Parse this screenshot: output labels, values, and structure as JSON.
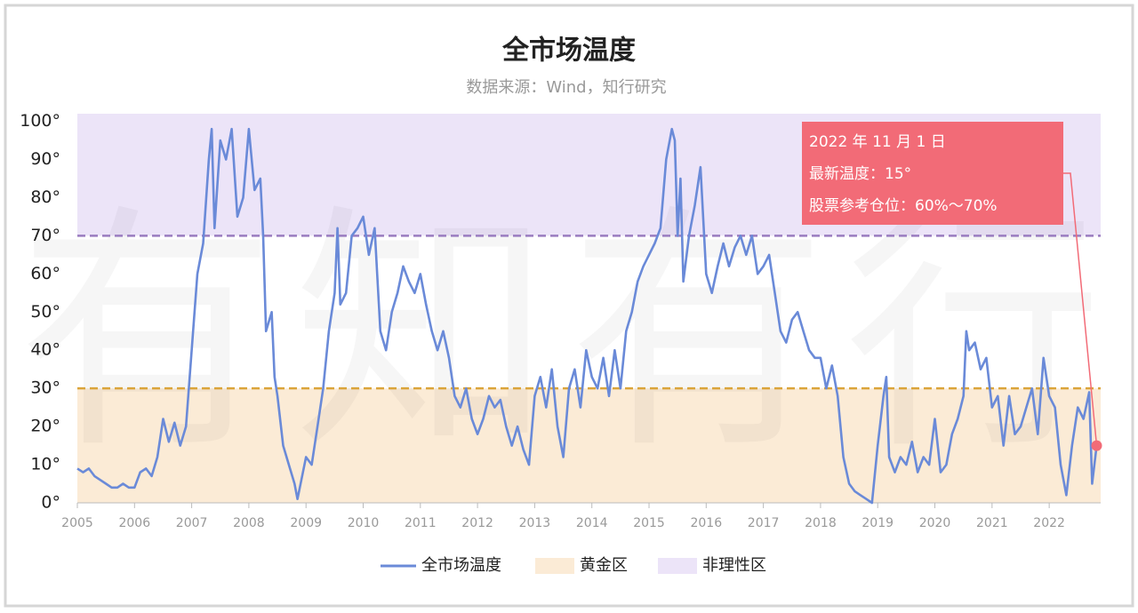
{
  "chart_data": {
    "type": "line",
    "title": "全市场温度",
    "subtitle": "数据来源：Wind，知行研究",
    "watermark": "有知有行",
    "x": [
      2005.0,
      2005.1,
      2005.2,
      2005.3,
      2005.4,
      2005.5,
      2005.6,
      2005.7,
      2005.8,
      2005.9,
      2006.0,
      2006.1,
      2006.2,
      2006.3,
      2006.4,
      2006.5,
      2006.6,
      2006.7,
      2006.8,
      2006.9,
      2007.0,
      2007.1,
      2007.2,
      2007.3,
      2007.35,
      2007.4,
      2007.5,
      2007.6,
      2007.7,
      2007.8,
      2007.9,
      2008.0,
      2008.1,
      2008.2,
      2008.25,
      2008.3,
      2008.4,
      2008.45,
      2008.5,
      2008.6,
      2008.7,
      2008.8,
      2008.85,
      2009.0,
      2009.1,
      2009.2,
      2009.3,
      2009.4,
      2009.5,
      2009.55,
      2009.6,
      2009.7,
      2009.8,
      2009.9,
      2010.0,
      2010.1,
      2010.2,
      2010.3,
      2010.4,
      2010.5,
      2010.6,
      2010.7,
      2010.8,
      2010.9,
      2011.0,
      2011.1,
      2011.2,
      2011.3,
      2011.4,
      2011.5,
      2011.6,
      2011.7,
      2011.8,
      2011.9,
      2012.0,
      2012.1,
      2012.2,
      2012.3,
      2012.4,
      2012.5,
      2012.6,
      2012.7,
      2012.8,
      2012.9,
      2013.0,
      2013.1,
      2013.2,
      2013.3,
      2013.4,
      2013.5,
      2013.6,
      2013.7,
      2013.8,
      2013.9,
      2014.0,
      2014.1,
      2014.2,
      2014.3,
      2014.4,
      2014.5,
      2014.6,
      2014.7,
      2014.8,
      2014.9,
      2015.0,
      2015.1,
      2015.2,
      2015.3,
      2015.4,
      2015.45,
      2015.5,
      2015.55,
      2015.6,
      2015.7,
      2015.8,
      2015.9,
      2016.0,
      2016.1,
      2016.2,
      2016.3,
      2016.4,
      2016.5,
      2016.6,
      2016.7,
      2016.8,
      2016.9,
      2017.0,
      2017.1,
      2017.2,
      2017.3,
      2017.4,
      2017.5,
      2017.6,
      2017.7,
      2017.8,
      2017.9,
      2018.0,
      2018.1,
      2018.2,
      2018.3,
      2018.4,
      2018.5,
      2018.6,
      2018.7,
      2018.8,
      2018.9,
      2019.0,
      2019.1,
      2019.15,
      2019.2,
      2019.3,
      2019.4,
      2019.5,
      2019.6,
      2019.7,
      2019.8,
      2019.9,
      2020.0,
      2020.1,
      2020.2,
      2020.3,
      2020.4,
      2020.5,
      2020.55,
      2020.6,
      2020.7,
      2020.8,
      2020.9,
      2021.0,
      2021.1,
      2021.2,
      2021.3,
      2021.4,
      2021.5,
      2021.6,
      2021.7,
      2021.8,
      2021.9,
      2022.0,
      2022.1,
      2022.2,
      2022.3,
      2022.4,
      2022.5,
      2022.6,
      2022.7,
      2022.75,
      2022.83
    ],
    "series": [
      {
        "name": "全市场温度",
        "color": "#6a8ad8",
        "values": [
          9,
          8,
          9,
          7,
          6,
          5,
          4,
          4,
          5,
          4,
          4,
          8,
          9,
          7,
          12,
          22,
          16,
          21,
          15,
          20,
          40,
          60,
          68,
          90,
          98,
          72,
          95,
          90,
          98,
          75,
          80,
          98,
          82,
          85,
          70,
          45,
          50,
          33,
          28,
          15,
          10,
          5,
          1,
          12,
          10,
          20,
          30,
          45,
          55,
          72,
          52,
          55,
          70,
          72,
          75,
          65,
          72,
          45,
          40,
          50,
          55,
          62,
          58,
          55,
          60,
          52,
          45,
          40,
          45,
          38,
          28,
          25,
          30,
          22,
          18,
          22,
          28,
          25,
          27,
          20,
          15,
          20,
          14,
          10,
          28,
          33,
          25,
          35,
          20,
          12,
          30,
          35,
          25,
          40,
          33,
          30,
          38,
          28,
          40,
          30,
          45,
          50,
          58,
          62,
          65,
          68,
          72,
          90,
          98,
          95,
          70,
          85,
          58,
          70,
          78,
          88,
          60,
          55,
          62,
          68,
          62,
          67,
          70,
          65,
          70,
          60,
          62,
          65,
          55,
          45,
          42,
          48,
          50,
          45,
          40,
          38,
          38,
          30,
          36,
          28,
          12,
          5,
          3,
          2,
          1,
          0,
          15,
          28,
          33,
          12,
          8,
          12,
          10,
          16,
          8,
          12,
          10,
          22,
          8,
          10,
          18,
          22,
          28,
          45,
          40,
          42,
          35,
          38,
          25,
          28,
          15,
          28,
          18,
          20,
          25,
          30,
          18,
          38,
          28,
          25,
          10,
          2,
          15,
          25,
          22,
          29,
          5,
          15
        ]
      }
    ],
    "bands": [
      {
        "name": "黄金区",
        "color": "#fbebd6",
        "line_color": "#dba43a",
        "range": [
          0,
          30
        ]
      },
      {
        "name": "非理性区",
        "color": "#ece4f8",
        "line_color": "#9a7cc0",
        "range": [
          70,
          102
        ]
      }
    ],
    "xlim": [
      2005,
      2022.9
    ],
    "xticks": [
      2005,
      2006,
      2007,
      2008,
      2009,
      2010,
      2011,
      2012,
      2013,
      2014,
      2015,
      2016,
      2017,
      2018,
      2019,
      2020,
      2021,
      2022
    ],
    "ylim": [
      0,
      102
    ],
    "yticks": [
      {
        "value": 0,
        "label": "0°"
      },
      {
        "value": 10,
        "label": "10°"
      },
      {
        "value": 20,
        "label": "20°"
      },
      {
        "value": 30,
        "label": "30°"
      },
      {
        "value": 40,
        "label": "40°"
      },
      {
        "value": 50,
        "label": "50°"
      },
      {
        "value": 60,
        "label": "60°"
      },
      {
        "value": 70,
        "label": "70°"
      },
      {
        "value": 80,
        "label": "80°"
      },
      {
        "value": 90,
        "label": "90°"
      },
      {
        "value": 100,
        "label": "100°"
      }
    ],
    "annotation": {
      "lines": [
        "2022 年 11 月 1 日",
        "最新温度：15°",
        "股票参考仓位：60%～70%"
      ],
      "color": "#f26b77"
    }
  }
}
